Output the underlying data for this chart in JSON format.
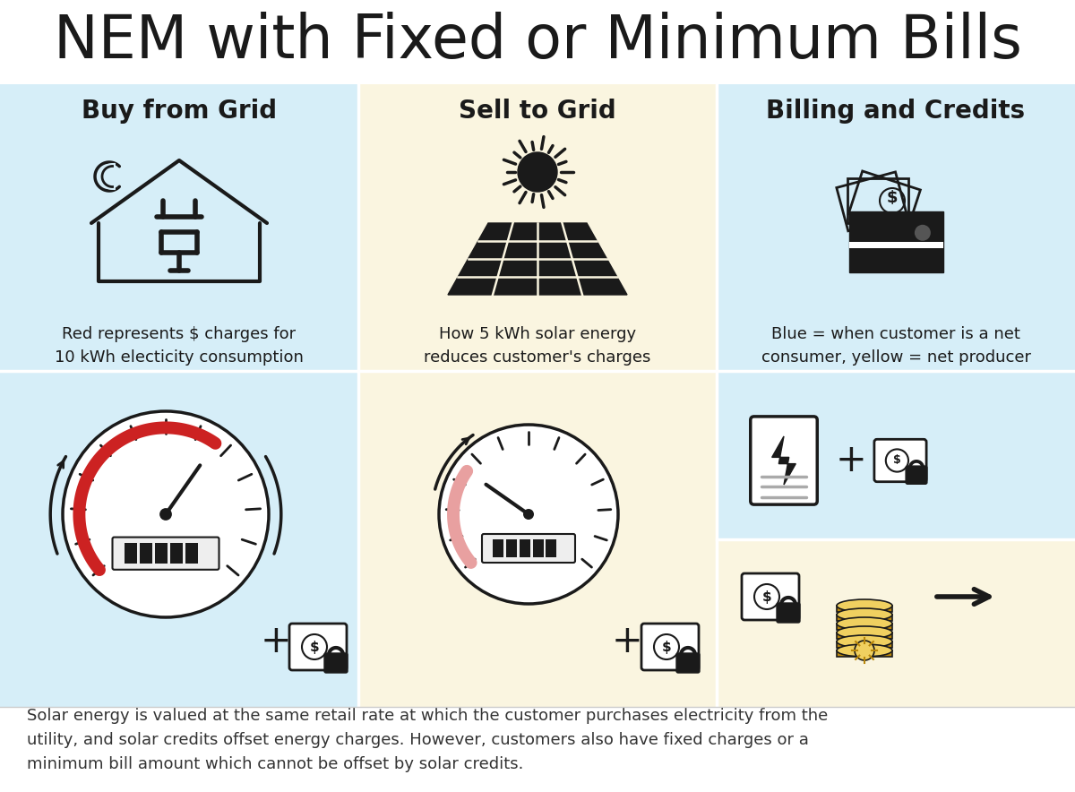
{
  "title": "NEM with Fixed or Minimum Bills",
  "title_fontsize": 48,
  "bg_color": "#ffffff",
  "col1_bg": "#d6eef8",
  "col2_bg": "#faf5e0",
  "col3_top_bg": "#d6eef8",
  "col3_bot_bg": "#faf5e0",
  "col_headers": [
    "Buy from Grid",
    "Sell to Grid",
    "Billing and Credits"
  ],
  "col_header_fontsize": 20,
  "col1_desc": "Red represents $ charges for\n10 kWh electicity consumption",
  "col2_desc": "How 5 kWh solar energy\nreduces customer's charges",
  "col3_desc": "Blue = when customer is a net\nconsumer, yellow = net producer",
  "desc_fontsize": 13,
  "footer_text": "Solar energy is valued at the same retail rate at which the customer purchases electricity from the\nutility, and solar credits offset energy charges. However, customers also have fixed charges or a\nminimum bill amount which cannot be offset by solar credits.",
  "footer_fontsize": 13,
  "dark_color": "#1a1a1a",
  "red_color": "#cc2222",
  "pink_color": "#e8a0a0",
  "gold_color": "#d4b800",
  "gold_face": "#f0d060"
}
